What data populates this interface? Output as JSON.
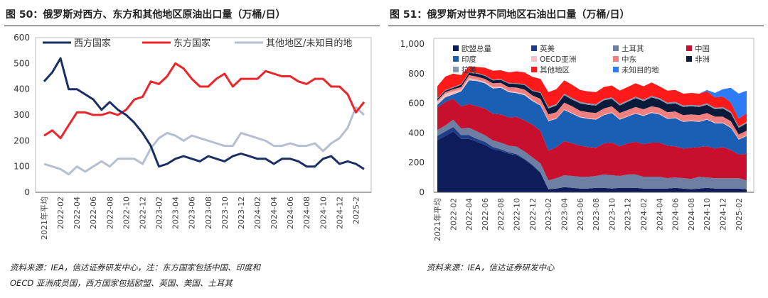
{
  "left": {
    "title": "图 50：俄罗斯对西方、东方和其他地区原油出口量（万桶/日）",
    "source": [
      "资料来源：IEA，信达证券研发中心，注：东方国家包括中国、印度和",
      "OECD 亚洲成员国，西方国家包括欧盟、英国、美国、土耳其"
    ]
  },
  "right": {
    "title": "图 51：俄罗斯对世界不同地区石油出口量（万桶/日）",
    "source": [
      "资料来源：IEA，信达证券研发中心"
    ]
  },
  "chart_data": [
    {
      "type": "line",
      "ylim": [
        0,
        600
      ],
      "yticks": [
        "0",
        "100",
        "200",
        "300",
        "400",
        "500",
        "600"
      ],
      "x_tick_labels": [
        "2021年平均",
        "2022-02",
        "2022-04",
        "2022-06",
        "2022-08",
        "2022-10",
        "2022-12",
        "2023-02",
        "2023-04",
        "2023-06",
        "2023-08",
        "2023-10",
        "2023-12",
        "2024-02",
        "2024-04",
        "2024-06",
        "2024-08",
        "2024-10",
        "2024-12",
        "2025-2"
      ],
      "grid": false,
      "legend": "top",
      "series": [
        {
          "name": "西方国家",
          "color": "#1b2f64",
          "values": [
            430,
            465,
            520,
            400,
            400,
            380,
            360,
            320,
            350,
            320,
            300,
            270,
            230,
            180,
            100,
            110,
            130,
            140,
            130,
            120,
            140,
            130,
            120,
            140,
            150,
            140,
            130,
            130,
            110,
            130,
            130,
            120,
            100,
            100,
            130,
            140,
            110,
            120,
            110,
            90
          ]
        },
        {
          "name": "东方国家",
          "color": "#e8262b",
          "values": [
            220,
            240,
            210,
            260,
            310,
            310,
            300,
            300,
            310,
            300,
            320,
            360,
            370,
            430,
            420,
            450,
            500,
            480,
            440,
            410,
            410,
            440,
            460,
            410,
            440,
            440,
            440,
            470,
            460,
            450,
            450,
            430,
            420,
            440,
            440,
            410,
            410,
            380,
            310,
            350
          ]
        },
        {
          "name": "其他地区/未知目的地",
          "color": "#b6bfcf",
          "values": [
            110,
            100,
            90,
            70,
            100,
            80,
            100,
            120,
            100,
            130,
            130,
            130,
            110,
            170,
            210,
            230,
            220,
            200,
            220,
            210,
            200,
            190,
            180,
            180,
            230,
            220,
            210,
            200,
            180,
            180,
            190,
            180,
            180,
            190,
            160,
            190,
            210,
            250,
            330,
            300
          ]
        }
      ]
    },
    {
      "type": "area",
      "stacked": true,
      "ylim": [
        0,
        1000
      ],
      "yticks": [
        "0",
        "200",
        "400",
        "600",
        "800",
        "1,000"
      ],
      "x_tick_labels": [
        "2021年平均",
        "2022-02",
        "2022-04",
        "2022-06",
        "2022-08",
        "2022-10",
        "2022-12",
        "2023-02",
        "2023-04",
        "2023-06",
        "2023-08",
        "2023-10",
        "2023-12",
        "2024-02",
        "2024-04",
        "2024-06",
        "2024-08",
        "2024-10",
        "2024-12",
        "2025-02"
      ],
      "grid": false,
      "legend": "top",
      "series": [
        {
          "name": "欧盟总量",
          "color": "#0d1d5c",
          "values": [
            350,
            380,
            410,
            360,
            360,
            340,
            320,
            290,
            280,
            260,
            250,
            220,
            180,
            130,
            20,
            25,
            35,
            30,
            25,
            25,
            30,
            30,
            25,
            30,
            30,
            30,
            25,
            25,
            25,
            25,
            30,
            25,
            20,
            25,
            30,
            25,
            25,
            25,
            25,
            20
          ]
        },
        {
          "name": "英美",
          "color": "#1f3c88",
          "values": [
            30,
            30,
            30,
            25,
            25,
            20,
            20,
            15,
            10,
            10,
            8,
            5,
            5,
            5,
            0,
            0,
            0,
            0,
            0,
            0,
            0,
            0,
            0,
            0,
            0,
            0,
            0,
            0,
            0,
            0,
            0,
            0,
            0,
            0,
            0,
            0,
            0,
            0,
            0,
            0
          ]
        },
        {
          "name": "土耳其",
          "color": "#6d7fa3",
          "values": [
            40,
            40,
            50,
            45,
            50,
            50,
            45,
            45,
            45,
            45,
            50,
            50,
            50,
            60,
            60,
            70,
            80,
            80,
            80,
            80,
            80,
            90,
            90,
            80,
            90,
            90,
            80,
            80,
            80,
            70,
            70,
            70,
            70,
            80,
            70,
            70,
            70,
            70,
            70,
            60
          ]
        },
        {
          "name": "中国",
          "color": "#c8102e",
          "values": [
            150,
            160,
            140,
            150,
            160,
            170,
            180,
            180,
            190,
            190,
            200,
            210,
            220,
            220,
            200,
            210,
            230,
            220,
            210,
            200,
            190,
            210,
            220,
            200,
            210,
            220,
            220,
            230,
            230,
            220,
            210,
            200,
            210,
            200,
            210,
            200,
            210,
            190,
            160,
            180
          ]
        },
        {
          "name": "印度",
          "color": "#1a5fb4",
          "values": [
            20,
            30,
            30,
            100,
            160,
            170,
            170,
            170,
            180,
            170,
            160,
            170,
            160,
            170,
            200,
            190,
            210,
            200,
            190,
            190,
            190,
            190,
            200,
            180,
            180,
            190,
            190,
            200,
            190,
            180,
            190,
            180,
            180,
            170,
            180,
            170,
            160,
            150,
            100,
            120
          ]
        },
        {
          "name": "OECD亚洲",
          "color": "#f2c2c2",
          "values": [
            20,
            25,
            20,
            15,
            15,
            10,
            10,
            10,
            8,
            8,
            8,
            8,
            8,
            5,
            5,
            5,
            5,
            5,
            5,
            5,
            5,
            5,
            5,
            5,
            5,
            5,
            5,
            5,
            5,
            5,
            5,
            5,
            5,
            5,
            5,
            5,
            5,
            5,
            5,
            5
          ]
        },
        {
          "name": "中东",
          "color": "#f07f7f",
          "values": [
            10,
            10,
            15,
            15,
            20,
            20,
            20,
            25,
            25,
            25,
            30,
            30,
            30,
            40,
            40,
            40,
            45,
            45,
            40,
            40,
            40,
            40,
            40,
            40,
            40,
            40,
            40,
            40,
            40,
            40,
            40,
            40,
            40,
            40,
            40,
            40,
            40,
            40,
            30,
            30
          ]
        },
        {
          "name": "非洲",
          "color": "#0a1a3a",
          "values": [
            10,
            10,
            10,
            15,
            15,
            20,
            20,
            20,
            20,
            25,
            25,
            30,
            30,
            40,
            40,
            45,
            50,
            45,
            50,
            50,
            50,
            55,
            50,
            50,
            55,
            60,
            55,
            60,
            55,
            55,
            55,
            55,
            55,
            55,
            55,
            50,
            55,
            55,
            45,
            50
          ]
        },
        {
          "name": "拉美",
          "color": "#8a97b1",
          "values": [
            5,
            5,
            5,
            5,
            5,
            5,
            5,
            5,
            5,
            5,
            5,
            5,
            5,
            5,
            10,
            10,
            10,
            10,
            10,
            10,
            10,
            10,
            10,
            10,
            10,
            10,
            10,
            10,
            10,
            10,
            10,
            10,
            10,
            10,
            10,
            10,
            10,
            10,
            10,
            10
          ]
        },
        {
          "name": "其他地区",
          "color": "#ff1a1a",
          "values": [
            80,
            90,
            90,
            60,
            40,
            40,
            50,
            60,
            60,
            70,
            80,
            80,
            90,
            90,
            100,
            100,
            90,
            90,
            80,
            80,
            80,
            80,
            80,
            90,
            90,
            90,
            90,
            90,
            80,
            80,
            80,
            80,
            80,
            80,
            80,
            70,
            70,
            60,
            50,
            60
          ]
        },
        {
          "name": "未知目的地",
          "color": "#2d7cf6",
          "values": [
            0,
            0,
            0,
            0,
            0,
            0,
            0,
            0,
            0,
            0,
            0,
            0,
            0,
            0,
            0,
            0,
            0,
            0,
            0,
            0,
            0,
            0,
            0,
            0,
            0,
            0,
            0,
            0,
            0,
            0,
            0,
            0,
            0,
            0,
            10,
            30,
            50,
            100,
            170,
            150
          ]
        }
      ]
    }
  ]
}
